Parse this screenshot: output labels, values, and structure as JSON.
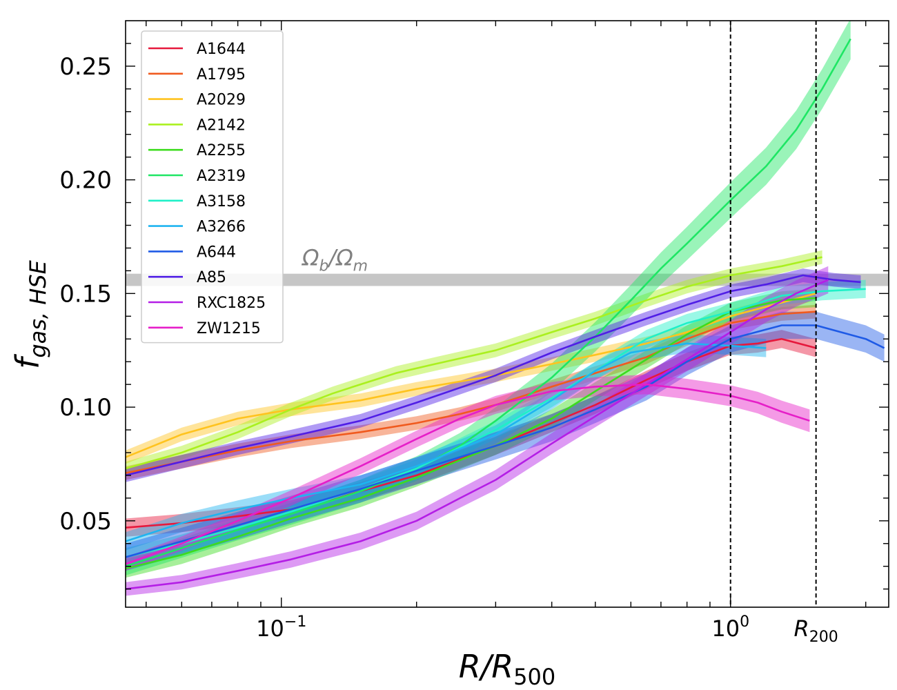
{
  "chart_data": {
    "type": "line",
    "title": "",
    "xlabel": {
      "main": "R/R",
      "sub": "500"
    },
    "ylabel": {
      "main": "f",
      "sub": "gas, HSE"
    },
    "xscale": "log",
    "xlim": [
      0.045,
      2.25
    ],
    "ylim": [
      0.012,
      0.27
    ],
    "x_ticks": [
      {
        "value": 0.1,
        "base": "10",
        "exp": "−1"
      },
      {
        "value": 1.0,
        "base": "10",
        "exp": "0"
      }
    ],
    "y_ticks": [
      {
        "value": 0.05,
        "label": "0.05"
      },
      {
        "value": 0.1,
        "label": "0.10"
      },
      {
        "value": 0.15,
        "label": "0.15"
      },
      {
        "value": 0.2,
        "label": "0.20"
      },
      {
        "value": 0.25,
        "label": "0.25"
      }
    ],
    "reference_lines": [
      {
        "x": 1.0,
        "label": ""
      },
      {
        "x": 1.55,
        "label_main": "R",
        "label_sub": "200"
      }
    ],
    "band": {
      "ymin": 0.1533,
      "ymax": 0.1587,
      "label": "Ω",
      "label_sub": "b",
      "label_mid": "/Ω",
      "label_sub2": "m"
    },
    "legend_position": "upper-left",
    "series": [
      {
        "name": "A1644",
        "color": "#e6193c",
        "band": 0.004,
        "x": [
          0.045,
          0.06,
          0.08,
          0.105,
          0.15,
          0.2,
          0.3,
          0.4,
          0.5,
          0.65,
          0.8,
          1.0,
          1.15,
          1.3,
          1.55
        ],
        "y": [
          0.047,
          0.049,
          0.052,
          0.055,
          0.063,
          0.07,
          0.083,
          0.093,
          0.101,
          0.112,
          0.12,
          0.127,
          0.128,
          0.13,
          0.126
        ]
      },
      {
        "name": "A1795",
        "color": "#f05a1e",
        "band": 0.003,
        "x": [
          0.045,
          0.06,
          0.08,
          0.105,
          0.15,
          0.2,
          0.25,
          0.3,
          0.4,
          0.5,
          0.65,
          0.8,
          1.0,
          1.3,
          1.55
        ],
        "y": [
          0.071,
          0.076,
          0.081,
          0.085,
          0.089,
          0.093,
          0.097,
          0.101,
          0.109,
          0.115,
          0.122,
          0.13,
          0.137,
          0.141,
          0.142
        ]
      },
      {
        "name": "A2029",
        "color": "#ffc31e",
        "band": 0.003,
        "x": [
          0.045,
          0.06,
          0.08,
          0.105,
          0.15,
          0.2,
          0.3,
          0.4,
          0.5,
          0.65,
          0.8,
          1.0,
          1.3,
          1.55
        ],
        "y": [
          0.078,
          0.088,
          0.095,
          0.099,
          0.103,
          0.108,
          0.114,
          0.119,
          0.123,
          0.128,
          0.133,
          0.14,
          0.146,
          0.15
        ]
      },
      {
        "name": "A2142",
        "color": "#aaf01e",
        "band": 0.003,
        "x": [
          0.045,
          0.06,
          0.08,
          0.105,
          0.13,
          0.15,
          0.18,
          0.22,
          0.3,
          0.4,
          0.5,
          0.65,
          0.8,
          1.0,
          1.3,
          1.6
        ],
        "y": [
          0.073,
          0.08,
          0.089,
          0.099,
          0.106,
          0.11,
          0.115,
          0.119,
          0.125,
          0.133,
          0.139,
          0.147,
          0.153,
          0.158,
          0.162,
          0.166
        ]
      },
      {
        "name": "A2255",
        "color": "#3cdc1e",
        "band": 0.004,
        "x": [
          0.045,
          0.06,
          0.08,
          0.105,
          0.15,
          0.2,
          0.3,
          0.4,
          0.5,
          0.65,
          0.8,
          1.0,
          1.3,
          1.55
        ],
        "y": [
          0.029,
          0.035,
          0.043,
          0.051,
          0.06,
          0.069,
          0.083,
          0.095,
          0.107,
          0.121,
          0.132,
          0.142,
          0.147,
          0.148
        ]
      },
      {
        "name": "A2319",
        "color": "#1ee664",
        "band": 0.004,
        "band_end": 0.009,
        "x": [
          0.045,
          0.06,
          0.08,
          0.105,
          0.15,
          0.2,
          0.25,
          0.3,
          0.4,
          0.5,
          0.6,
          0.7,
          0.8,
          0.9,
          1.0,
          1.2,
          1.4,
          1.6,
          1.85
        ],
        "y": [
          0.03,
          0.038,
          0.046,
          0.053,
          0.063,
          0.073,
          0.083,
          0.094,
          0.113,
          0.131,
          0.147,
          0.161,
          0.172,
          0.182,
          0.191,
          0.206,
          0.222,
          0.24,
          0.262
        ]
      },
      {
        "name": "A3158",
        "color": "#1ef0c8",
        "band": 0.004,
        "x": [
          0.045,
          0.06,
          0.08,
          0.105,
          0.15,
          0.2,
          0.3,
          0.4,
          0.5,
          0.65,
          0.8,
          1.0,
          1.3,
          1.6,
          2.0
        ],
        "y": [
          0.034,
          0.04,
          0.047,
          0.054,
          0.064,
          0.073,
          0.09,
          0.104,
          0.116,
          0.13,
          0.137,
          0.142,
          0.149,
          0.151,
          0.152
        ]
      },
      {
        "name": "A3266",
        "color": "#1eb4f0",
        "band": 0.004,
        "x": [
          0.045,
          0.06,
          0.08,
          0.105,
          0.15,
          0.2,
          0.3,
          0.4,
          0.5,
          0.6,
          0.8,
          1.0,
          1.2
        ],
        "y": [
          0.041,
          0.049,
          0.055,
          0.06,
          0.066,
          0.074,
          0.088,
          0.103,
          0.116,
          0.124,
          0.128,
          0.127,
          0.126
        ]
      },
      {
        "name": "A644",
        "color": "#1e5ae6",
        "band": 0.006,
        "x": [
          0.045,
          0.06,
          0.08,
          0.105,
          0.15,
          0.2,
          0.3,
          0.4,
          0.5,
          0.65,
          0.8,
          1.0,
          1.3,
          1.55,
          2.0,
          2.2
        ],
        "y": [
          0.034,
          0.041,
          0.048,
          0.055,
          0.064,
          0.072,
          0.083,
          0.091,
          0.099,
          0.109,
          0.12,
          0.13,
          0.136,
          0.136,
          0.13,
          0.126
        ]
      },
      {
        "name": "A85",
        "color": "#501ee6",
        "band": 0.003,
        "x": [
          0.045,
          0.06,
          0.08,
          0.105,
          0.15,
          0.2,
          0.3,
          0.4,
          0.5,
          0.65,
          0.8,
          1.0,
          1.2,
          1.45,
          1.7,
          1.95
        ],
        "y": [
          0.07,
          0.076,
          0.082,
          0.087,
          0.094,
          0.102,
          0.114,
          0.124,
          0.131,
          0.139,
          0.145,
          0.151,
          0.154,
          0.158,
          0.156,
          0.155
        ]
      },
      {
        "name": "RXC1825",
        "color": "#b41ee6",
        "band": 0.003,
        "band_end": 0.006,
        "x": [
          0.045,
          0.06,
          0.08,
          0.105,
          0.15,
          0.2,
          0.25,
          0.3,
          0.4,
          0.5,
          0.65,
          0.8,
          1.0,
          1.2,
          1.4,
          1.65
        ],
        "y": [
          0.02,
          0.023,
          0.028,
          0.033,
          0.041,
          0.05,
          0.06,
          0.068,
          0.084,
          0.096,
          0.11,
          0.121,
          0.133,
          0.143,
          0.15,
          0.156
        ]
      },
      {
        "name": "ZW1215",
        "color": "#e61ec8",
        "band": 0.003,
        "band_end": 0.005,
        "x": [
          0.045,
          0.06,
          0.08,
          0.105,
          0.15,
          0.2,
          0.25,
          0.3,
          0.4,
          0.5,
          0.65,
          0.8,
          1.0,
          1.15,
          1.3,
          1.5
        ],
        "y": [
          0.031,
          0.04,
          0.05,
          0.06,
          0.074,
          0.086,
          0.095,
          0.101,
          0.107,
          0.109,
          0.11,
          0.108,
          0.105,
          0.102,
          0.098,
          0.094
        ]
      }
    ]
  }
}
